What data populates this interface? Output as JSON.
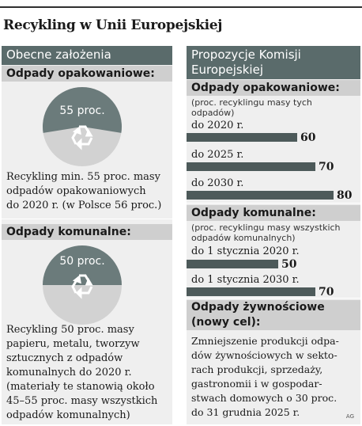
{
  "title": "Recykling w Unii Europejskiej",
  "left": {
    "heading": "Obecne założenia",
    "packaging": {
      "heading": "Odpady opakowaniowe:",
      "circle_label": "55 proc.",
      "percent": 55,
      "lines": [
        "Recykling min. 55 proc. masy",
        "odpadów opakowaniowych",
        "do 2020 r. (w Polsce 56 proc.)"
      ]
    },
    "municipal": {
      "heading": "Odpady komunalne:",
      "circle_label": "50 proc.",
      "percent": 50,
      "lines": [
        "Recykling 50 proc. masy",
        "papieru, metalu, tworzyw",
        "sztucznych z odpadów",
        "komunalnych do 2020 r.",
        "(materiały te stanowią około",
        "45–55 proc. masy wszystkich",
        "odpadów komunalnych)"
      ]
    }
  },
  "right": {
    "heading_lines": [
      "Propozycje Komisji",
      "Europejskiej"
    ],
    "packaging": {
      "heading": "Odpady opakowaniowe:",
      "note_lines": [
        "(proc. recyklingu masy tych",
        "odpadów)"
      ],
      "rows": [
        {
          "label": "do 2020 r.",
          "value": "60",
          "percent": 60
        },
        {
          "label": "do 2025 r.",
          "value": "70",
          "percent": 70
        },
        {
          "label": "do 2030 r.",
          "value": "80",
          "percent": 80
        }
      ]
    },
    "municipal": {
      "heading": "Odpady komunalne:",
      "note_lines": [
        "(proc. recyklingu masy wszystkich",
        "odpadów komunalnych)"
      ],
      "rows": [
        {
          "label": "do 1 stycznia 2020 r.",
          "value": "50",
          "percent": 50
        },
        {
          "label": "do 1 stycznia 2030 r.",
          "value": "70",
          "percent": 70
        }
      ]
    },
    "food": {
      "heading_lines": [
        "Odpady żywnościowe",
        "(nowy cel):"
      ],
      "lines": [
        "Zmniejszenie produkcji odpa-",
        "dów żywnościowych w sekto-",
        "rach produkcji, sprzedaży,",
        "gastronomii i w gospodar-",
        "stwach domowych o 30 proc.",
        "do 31 grudnia 2025 r."
      ]
    }
  },
  "credit": "AG",
  "colors": {
    "header": "#5a6b6b",
    "bar": "#4d5a5a",
    "panel": "#efefef",
    "section": "#cfcfcf"
  }
}
